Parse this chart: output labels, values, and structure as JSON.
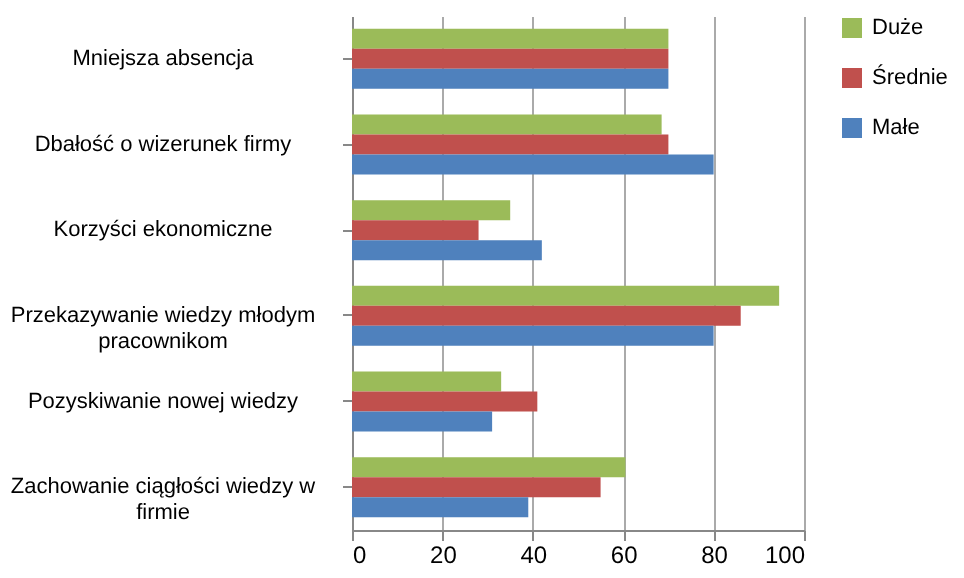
{
  "chart_data": {
    "type": "bar",
    "orientation": "horizontal",
    "categories": [
      "Mniejsza absencja",
      "Dbałość o wizerunek firmy",
      "Korzyści ekonomiczne",
      "Przekazywanie wiedzy młodym pracownikom",
      "Pozyskiwanie nowej wiedzy",
      "Zachowanie ciągłości wiedzy w firmie"
    ],
    "series": [
      {
        "name": "Duże",
        "color": "#9bbb59",
        "values": [
          70,
          68.5,
          35,
          94.5,
          33,
          60.5
        ]
      },
      {
        "name": "Średnie",
        "color": "#c0504d",
        "values": [
          70,
          70,
          28,
          86,
          41,
          55
        ]
      },
      {
        "name": "Małe",
        "color": "#4f81bd",
        "values": [
          70,
          80,
          42,
          80,
          31,
          39
        ]
      }
    ],
    "xlim": [
      0,
      100
    ],
    "xticks": [
      0,
      20,
      40,
      60,
      80,
      100
    ],
    "grid": "x",
    "legend": "right"
  }
}
